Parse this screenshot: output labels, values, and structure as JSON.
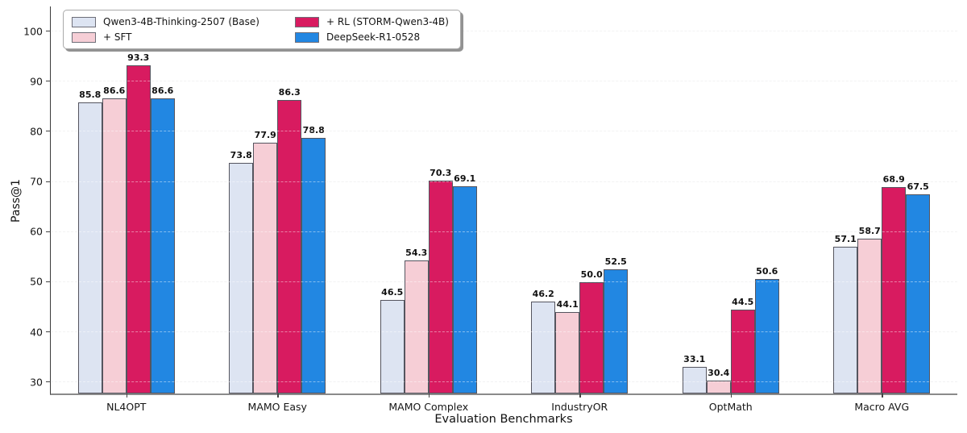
{
  "chart_data": {
    "type": "bar",
    "title": "",
    "xlabel": "Evaluation Benchmarks",
    "ylabel": "Pass@1",
    "categories": [
      "NL4OPT",
      "MAMO Easy",
      "MAMO Complex",
      "IndustryOR",
      "OptMath",
      "Macro AVG"
    ],
    "series": [
      {
        "name": "Qwen3-4B-Thinking-2507 (Base)",
        "color": "#dde4f2",
        "values": [
          85.8,
          73.8,
          46.5,
          46.2,
          33.1,
          57.1
        ]
      },
      {
        "name": "+ SFT",
        "color": "#f6ced6",
        "values": [
          86.6,
          77.9,
          54.3,
          44.1,
          30.4,
          58.7
        ]
      },
      {
        "name": "+ RL (STORM-Qwen3-4B)",
        "color": "#d81b60",
        "values": [
          93.3,
          86.3,
          70.3,
          50.0,
          44.5,
          68.9
        ]
      },
      {
        "name": "DeepSeek-R1-0528",
        "color": "#2287e2",
        "values": [
          86.6,
          78.8,
          69.1,
          52.5,
          50.6,
          67.5
        ]
      }
    ],
    "ylim": [
      27.8,
      105.0
    ],
    "yticks": [
      30,
      40,
      50,
      60,
      70,
      80,
      90,
      100
    ],
    "grid": true,
    "grid_style": "dashed",
    "legend_position": "upper left",
    "legend_columns": 2,
    "value_labels": true,
    "value_label_decimals": 1,
    "bar_edge_color": "#55555f"
  }
}
